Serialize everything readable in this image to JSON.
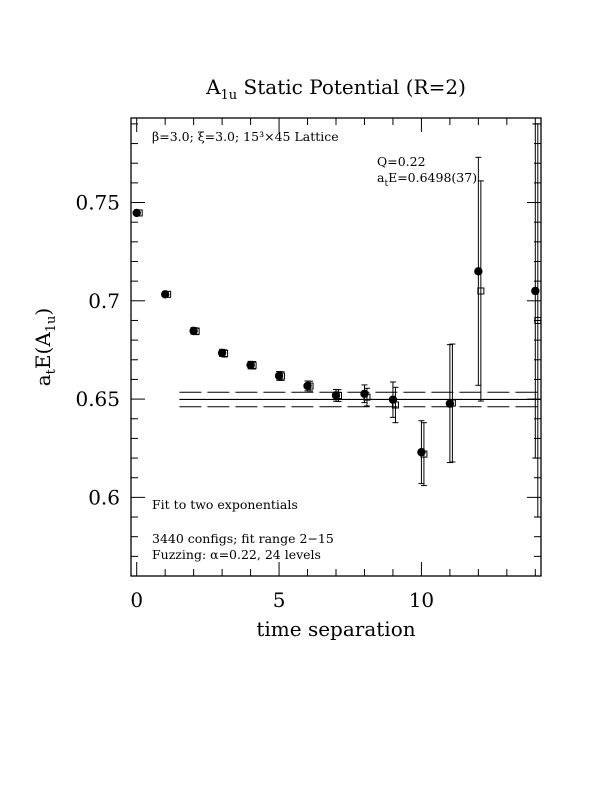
{
  "chart_data": {
    "type": "scatter",
    "title": {
      "base": "A",
      "sub": "1u",
      "rest": " Static Potential (R=2)"
    },
    "xlabel": "time separation",
    "ylabel": {
      "base": "a",
      "sub1": "t",
      "mid": "E(A",
      "sub2": "1u",
      "end": ")"
    },
    "xlim": [
      -0.2,
      14.2
    ],
    "ylim": [
      0.56,
      0.793
    ],
    "x_ticks": [
      0,
      5,
      10
    ],
    "y_ticks": [
      0.6,
      0.65,
      0.7,
      0.75
    ],
    "x_tick_labels": [
      "0",
      "5",
      "10"
    ],
    "y_tick_labels": [
      "0.6",
      "0.65",
      "0.7",
      "0.75"
    ],
    "annotations": {
      "lattice": "β=3.0; ξ=3.0; 15³×45 Lattice",
      "q": "Q=0.22",
      "ate": {
        "base": "a",
        "sub": "t",
        "rest": "E=0.6498(37)"
      },
      "fit_type": "Fit to two exponentials",
      "configs": "3440 configs; fit range 2−15",
      "fuzzing": "Fuzzing: α=0.22, 24 levels"
    },
    "fit": {
      "value": 0.6498,
      "error": 0.0037,
      "t_start": 1.5,
      "t_end": 14.2
    },
    "series": [
      {
        "marker": "filled-circle",
        "points": [
          {
            "t": 0,
            "e": 0.7447,
            "err": 0.0012
          },
          {
            "t": 1,
            "e": 0.7033,
            "err": 0.0015
          },
          {
            "t": 2,
            "e": 0.6847,
            "err": 0.0017
          },
          {
            "t": 3,
            "e": 0.6735,
            "err": 0.0018
          },
          {
            "t": 4,
            "e": 0.6673,
            "err": 0.0019
          },
          {
            "t": 5,
            "e": 0.6618,
            "err": 0.0022
          },
          {
            "t": 6,
            "e": 0.6567,
            "err": 0.0025
          },
          {
            "t": 7,
            "e": 0.6519,
            "err": 0.003
          },
          {
            "t": 8,
            "e": 0.6527,
            "err": 0.0045
          },
          {
            "t": 9,
            "e": 0.6497,
            "err": 0.009
          },
          {
            "t": 10,
            "e": 0.623,
            "err": 0.016
          },
          {
            "t": 11,
            "e": 0.6477,
            "err": 0.03
          },
          {
            "t": 12,
            "e": 0.715,
            "err": 0.058
          },
          {
            "t": 14,
            "e": 0.705,
            "err": 0.085
          }
        ]
      },
      {
        "marker": "open-square",
        "points": [
          {
            "t": 0,
            "e": 0.7447,
            "err": 0.0012
          },
          {
            "t": 1,
            "e": 0.7033,
            "err": 0.0015
          },
          {
            "t": 2,
            "e": 0.6845,
            "err": 0.0017
          },
          {
            "t": 3,
            "e": 0.6732,
            "err": 0.0018
          },
          {
            "t": 4,
            "e": 0.6672,
            "err": 0.0019
          },
          {
            "t": 5,
            "e": 0.6617,
            "err": 0.0022
          },
          {
            "t": 6,
            "e": 0.6566,
            "err": 0.0025
          },
          {
            "t": 7,
            "e": 0.6518,
            "err": 0.003
          },
          {
            "t": 8,
            "e": 0.651,
            "err": 0.0045
          },
          {
            "t": 9,
            "e": 0.647,
            "err": 0.009
          },
          {
            "t": 10,
            "e": 0.622,
            "err": 0.016
          },
          {
            "t": 11,
            "e": 0.648,
            "err": 0.03
          },
          {
            "t": 12,
            "e": 0.705,
            "err": 0.056
          },
          {
            "t": 14,
            "e": 0.69,
            "err": 0.1
          }
        ]
      }
    ]
  }
}
